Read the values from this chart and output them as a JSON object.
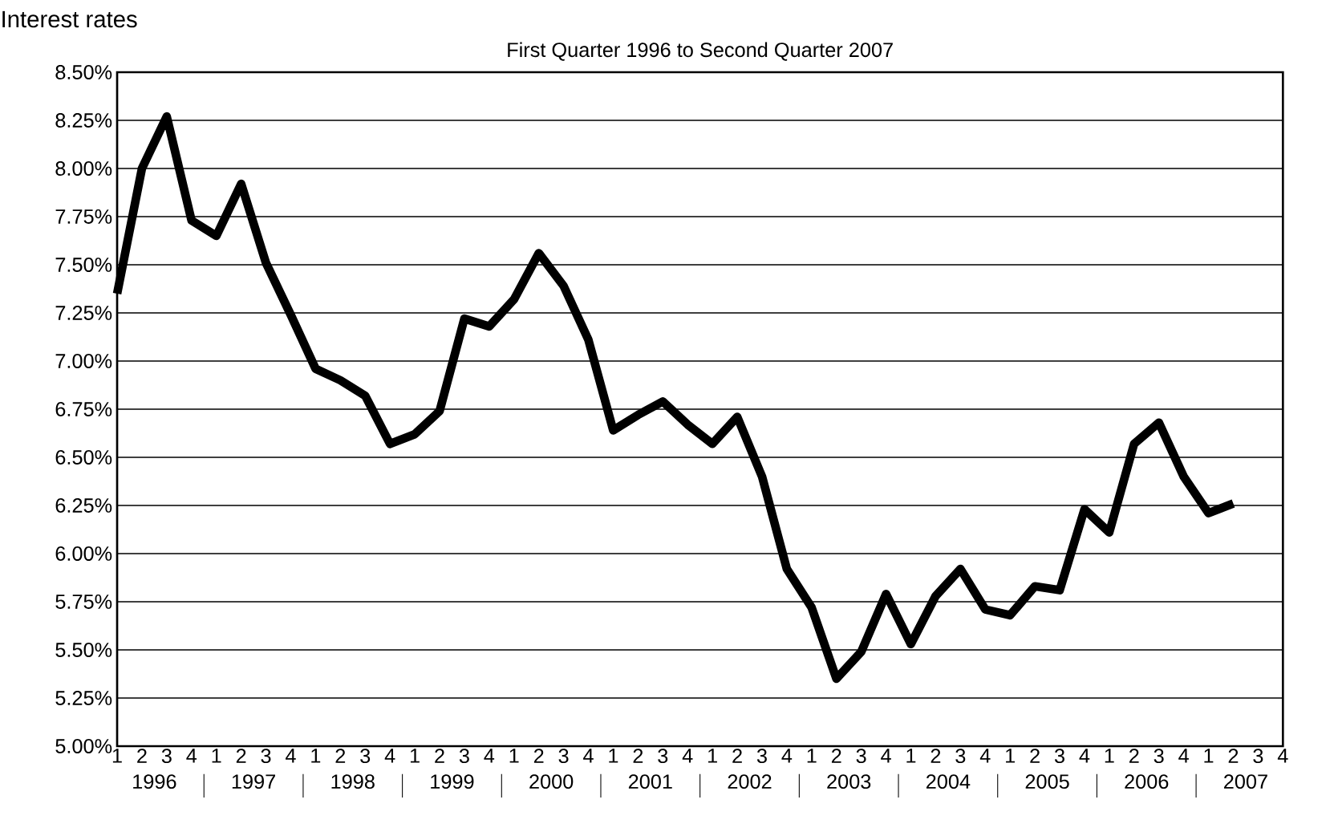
{
  "chart_data": {
    "type": "line",
    "title": "First Quarter 1996 to Second Quarter 2007",
    "ylabel": "Interest rates",
    "categories": [
      "1",
      "2",
      "3",
      "4",
      "1",
      "2",
      "3",
      "4",
      "1",
      "2",
      "3",
      "4",
      "1",
      "2",
      "3",
      "4",
      "1",
      "2",
      "3",
      "4",
      "1",
      "2",
      "3",
      "4",
      "1",
      "2",
      "3",
      "4",
      "1",
      "2",
      "3",
      "4",
      "1",
      "2",
      "3",
      "4",
      "1",
      "2",
      "3",
      "4",
      "1",
      "2",
      "3",
      "4",
      "1",
      "2",
      "3",
      "4"
    ],
    "series": [
      {
        "color": "#000000",
        "values": [
          7.35,
          8.0,
          8.27,
          7.73,
          7.65,
          7.92,
          7.51,
          7.24,
          6.96,
          6.9,
          6.82,
          6.57,
          6.62,
          6.74,
          7.22,
          7.18,
          7.32,
          7.56,
          7.39,
          7.11,
          6.64,
          6.72,
          6.79,
          6.67,
          6.57,
          6.71,
          6.4,
          5.92,
          5.72,
          5.35,
          5.49,
          5.79,
          5.53,
          5.78,
          5.92,
          5.71,
          5.68,
          5.83,
          5.81,
          6.23,
          6.11,
          6.57,
          6.68,
          6.4,
          6.21,
          6.26,
          null,
          null
        ]
      }
    ],
    "annotations": [
      "1996",
      "1997",
      "1998",
      "1999",
      "2000",
      "2001",
      "2002",
      "2003",
      "2004",
      "2005",
      "2006",
      "2007"
    ],
    "ylim": [
      5.0,
      8.5
    ],
    "yticks": [
      {
        "value": 5.0,
        "label": "5.00%"
      },
      {
        "value": 5.25,
        "label": "5.25%"
      },
      {
        "value": 5.5,
        "label": "5.50%"
      },
      {
        "value": 5.75,
        "label": "5.75%"
      },
      {
        "value": 6.0,
        "label": "6.00%"
      },
      {
        "value": 6.25,
        "label": "6.25%"
      },
      {
        "value": 6.5,
        "label": "6.50%"
      },
      {
        "value": 6.75,
        "label": "6.75%"
      },
      {
        "value": 7.0,
        "label": "7.00%"
      },
      {
        "value": 7.25,
        "label": "7.25%"
      },
      {
        "value": 7.5,
        "label": "7.50%"
      },
      {
        "value": 7.75,
        "label": "7.75%"
      },
      {
        "value": 8.0,
        "label": "8.00%"
      },
      {
        "value": 8.25,
        "label": "8.25%"
      },
      {
        "value": 8.5,
        "label": "8.50%"
      }
    ],
    "grid": "y",
    "marker": "none",
    "line_style": "solid"
  }
}
